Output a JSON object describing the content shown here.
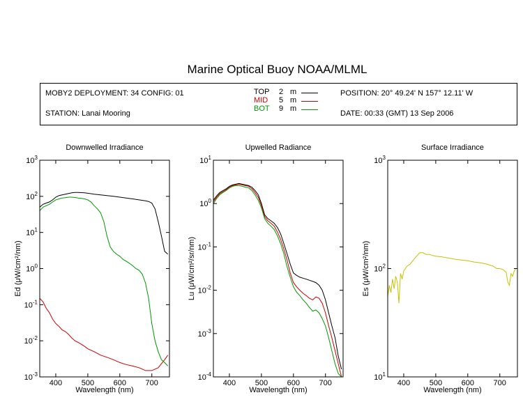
{
  "title": "Marine Optical Buoy NOAA/MLML",
  "header": {
    "deployment": "MOBY2 DEPLOYMENT: 34 CONFIG: 01",
    "station": "STATION: Lanai Mooring",
    "position": "POSITION: 20° 49.24' N   157° 12.11' W",
    "date": "DATE: 00:33 (GMT) 13 Sep 2006",
    "legend": [
      {
        "label": "TOP",
        "depth": "2",
        "unit": "m",
        "color": "#000000"
      },
      {
        "label": "MID",
        "depth": "5",
        "unit": "m",
        "color": "#cc0000"
      },
      {
        "label": "BOT",
        "depth": "9",
        "unit": "m",
        "color": "#009900"
      }
    ]
  },
  "chart_data": [
    {
      "type": "line",
      "title": "Downwelled Irradiance",
      "xlabel": "Wavelength (nm)",
      "ylabel": "Ed (μW/cm²/nm)",
      "yscale": "log",
      "xlim": [
        350,
        755
      ],
      "ylim": [
        0.001,
        1000
      ],
      "xticks": [
        400,
        500,
        600,
        700
      ],
      "yticks": [
        {
          "v": 0.001,
          "e": "-3"
        },
        {
          "v": 0.01,
          "e": "-2"
        },
        {
          "v": 0.1,
          "e": "-1"
        },
        {
          "v": 1,
          "e": "0"
        },
        {
          "v": 10,
          "e": "1"
        },
        {
          "v": 100,
          "e": "2"
        },
        {
          "v": 1000,
          "e": "3"
        }
      ],
      "series": [
        {
          "name": "TOP",
          "color": "#000000",
          "x": [
            350,
            360,
            370,
            380,
            390,
            400,
            410,
            420,
            430,
            440,
            450,
            460,
            470,
            480,
            490,
            500,
            520,
            540,
            560,
            580,
            600,
            620,
            640,
            660,
            680,
            690,
            700,
            710,
            720,
            730,
            740,
            750
          ],
          "y": [
            50,
            60,
            65,
            70,
            80,
            95,
            105,
            110,
            115,
            120,
            125,
            128,
            128,
            127,
            125,
            122,
            115,
            110,
            105,
            100,
            95,
            90,
            85,
            80,
            75,
            72,
            65,
            45,
            20,
            8,
            3,
            2.5
          ]
        },
        {
          "name": "MID",
          "color": "#cc0000",
          "x": [
            350,
            360,
            370,
            380,
            390,
            400,
            410,
            420,
            430,
            440,
            450,
            460,
            470,
            480,
            490,
            500,
            520,
            540,
            560,
            580,
            600,
            620,
            640,
            660,
            680,
            700,
            720,
            740,
            750
          ],
          "y": [
            0.15,
            0.12,
            0.08,
            0.06,
            0.04,
            0.03,
            0.025,
            0.02,
            0.018,
            0.015,
            0.012,
            0.01,
            0.009,
            0.008,
            0.007,
            0.006,
            0.005,
            0.004,
            0.0035,
            0.003,
            0.0025,
            0.0022,
            0.002,
            0.0018,
            0.0015,
            0.0015,
            0.0018,
            0.003,
            0.004
          ]
        },
        {
          "name": "BOT",
          "color": "#009900",
          "x": [
            350,
            360,
            370,
            380,
            390,
            400,
            410,
            420,
            430,
            440,
            450,
            460,
            470,
            480,
            490,
            500,
            510,
            520,
            530,
            540,
            550,
            560,
            570,
            580,
            590,
            600,
            610,
            620,
            630,
            640,
            650,
            660,
            670,
            680,
            690,
            700,
            710,
            720,
            730,
            740,
            750
          ],
          "y": [
            40,
            50,
            55,
            60,
            70,
            80,
            85,
            90,
            92,
            95,
            95,
            93,
            90,
            88,
            85,
            80,
            70,
            55,
            45,
            35,
            20,
            8,
            4,
            3,
            2.5,
            2.2,
            1.8,
            1.6,
            1.4,
            1.2,
            1.0,
            0.9,
            0.7,
            0.4,
            0.15,
            0.03,
            0.01,
            0.005,
            0.003,
            0.0025,
            0.002
          ]
        }
      ]
    },
    {
      "type": "line",
      "title": "Upwelled Radiance",
      "xlabel": "Wavelength (nm)",
      "ylabel": "Lu (μW/cm²/sr/nm)",
      "yscale": "log",
      "xlim": [
        350,
        755
      ],
      "ylim": [
        0.0001,
        10
      ],
      "xticks": [
        400,
        500,
        600,
        700
      ],
      "yticks": [
        {
          "v": 0.0001,
          "e": "-4"
        },
        {
          "v": 0.001,
          "e": "-3"
        },
        {
          "v": 0.01,
          "e": "-2"
        },
        {
          "v": 0.1,
          "e": "-1"
        },
        {
          "v": 1,
          "e": "0"
        },
        {
          "v": 10,
          "e": "1"
        }
      ],
      "series": [
        {
          "name": "TOP",
          "color": "#000000",
          "x": [
            350,
            360,
            370,
            380,
            390,
            400,
            410,
            420,
            430,
            440,
            450,
            460,
            470,
            480,
            490,
            500,
            510,
            520,
            530,
            540,
            550,
            560,
            570,
            580,
            590,
            600,
            610,
            620,
            630,
            640,
            650,
            660,
            670,
            680,
            690,
            700,
            710,
            720,
            730,
            740,
            750
          ],
          "y": [
            1.2,
            1.5,
            1.8,
            2.0,
            2.2,
            2.5,
            2.7,
            2.8,
            2.9,
            2.8,
            2.7,
            2.6,
            2.4,
            2.0,
            1.6,
            1.0,
            0.55,
            0.45,
            0.4,
            0.35,
            0.28,
            0.2,
            0.12,
            0.07,
            0.04,
            0.025,
            0.022,
            0.02,
            0.019,
            0.018,
            0.017,
            0.016,
            0.015,
            0.013,
            0.01,
            0.006,
            0.003,
            0.0015,
            0.0008,
            0.0003,
            0.00015
          ]
        },
        {
          "name": "MID",
          "color": "#cc0000",
          "x": [
            350,
            360,
            370,
            380,
            390,
            400,
            410,
            420,
            430,
            440,
            450,
            460,
            470,
            480,
            490,
            500,
            510,
            520,
            530,
            540,
            550,
            560,
            570,
            580,
            590,
            600,
            610,
            620,
            630,
            640,
            650,
            660,
            670,
            680,
            690,
            700,
            710,
            720,
            730,
            740,
            750
          ],
          "y": [
            1.1,
            1.4,
            1.7,
            1.9,
            2.1,
            2.4,
            2.6,
            2.7,
            2.8,
            2.7,
            2.6,
            2.5,
            2.2,
            1.8,
            1.4,
            0.9,
            0.5,
            0.4,
            0.35,
            0.3,
            0.22,
            0.15,
            0.09,
            0.05,
            0.025,
            0.015,
            0.012,
            0.01,
            0.0085,
            0.0075,
            0.0065,
            0.006,
            0.007,
            0.0065,
            0.005,
            0.003,
            0.0015,
            0.0008,
            0.0004,
            0.0002,
            0.0001
          ]
        },
        {
          "name": "BOT",
          "color": "#009900",
          "x": [
            350,
            360,
            370,
            380,
            390,
            400,
            410,
            420,
            430,
            440,
            450,
            460,
            470,
            480,
            490,
            500,
            510,
            520,
            530,
            540,
            550,
            560,
            570,
            580,
            590,
            600,
            610,
            620,
            630,
            640,
            650,
            660,
            670,
            680,
            690,
            700,
            710,
            720,
            730,
            740,
            750
          ],
          "y": [
            1.0,
            1.3,
            1.6,
            1.8,
            2.0,
            2.3,
            2.5,
            2.6,
            2.6,
            2.5,
            2.4,
            2.3,
            2.0,
            1.6,
            1.2,
            0.8,
            0.45,
            0.35,
            0.3,
            0.25,
            0.18,
            0.12,
            0.07,
            0.035,
            0.02,
            0.012,
            0.009,
            0.0075,
            0.006,
            0.005,
            0.004,
            0.0033,
            0.0035,
            0.003,
            0.0022,
            0.0015,
            0.0008,
            0.0004,
            0.0002,
            0.00012,
            0.0001
          ]
        }
      ]
    },
    {
      "type": "line",
      "title": "Surface Irradiance",
      "xlabel": "Wavelength (nm)",
      "ylabel": "Es (μW/cm²/nm)",
      "yscale": "log",
      "xlim": [
        350,
        755
      ],
      "ylim": [
        10,
        1000
      ],
      "xticks": [
        400,
        500,
        600,
        700
      ],
      "yticks": [
        {
          "v": 10,
          "e": "1"
        },
        {
          "v": 100,
          "e": "2"
        },
        {
          "v": 1000,
          "e": "3"
        }
      ],
      "series": [
        {
          "name": "Es",
          "color": "#c8c000",
          "x": [
            350,
            355,
            360,
            365,
            370,
            375,
            380,
            385,
            390,
            395,
            400,
            405,
            410,
            420,
            430,
            440,
            450,
            460,
            470,
            480,
            490,
            500,
            520,
            540,
            560,
            580,
            600,
            620,
            640,
            660,
            680,
            690,
            700,
            710,
            720,
            725,
            730,
            735,
            740,
            745,
            750
          ],
          "y": [
            55,
            70,
            60,
            80,
            65,
            85,
            75,
            48,
            90,
            80,
            95,
            100,
            105,
            110,
            120,
            130,
            140,
            140,
            135,
            135,
            132,
            130,
            128,
            125,
            122,
            120,
            118,
            115,
            113,
            110,
            105,
            100,
            100,
            98,
            92,
            75,
            70,
            90,
            85,
            95,
            100
          ]
        }
      ]
    }
  ]
}
